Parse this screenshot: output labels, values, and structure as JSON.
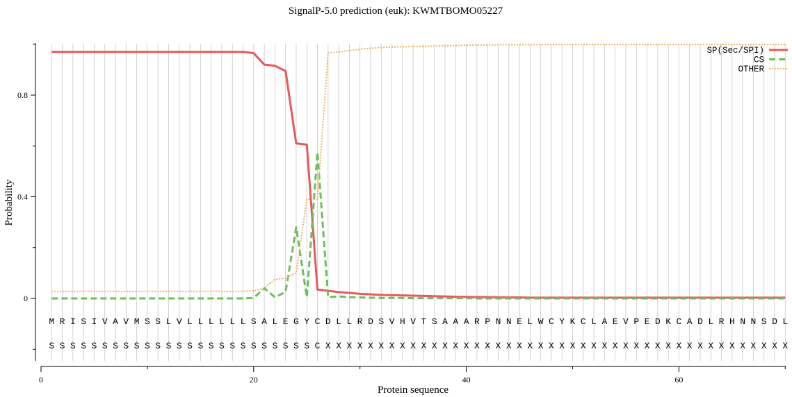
{
  "chart_data": {
    "type": "line",
    "title": "SignalP-5.0 prediction (euk):  KWMTBOMO05227",
    "xlabel": "Protein sequence",
    "ylabel": "Probability",
    "xlim": [
      0,
      70
    ],
    "ylim": [
      -0.25,
      1.0
    ],
    "x_ticks": [
      0,
      20,
      40,
      60
    ],
    "y_ticks": [
      0,
      0.4,
      0.8
    ],
    "y_tick_labels": [
      "0",
      "0.4",
      "0.8"
    ],
    "grid": "vertical lines at each residue",
    "legend_position": "top-right",
    "sequence": [
      "M",
      "R",
      "I",
      "S",
      "I",
      "V",
      "A",
      "V",
      "M",
      "S",
      "S",
      "L",
      "V",
      "L",
      "L",
      "L",
      "L",
      "L",
      "L",
      "S",
      "A",
      "L",
      "E",
      "G",
      "Y",
      "C",
      "D",
      "L",
      "L",
      "R",
      "D",
      "S",
      "V",
      "H",
      "V",
      "T",
      "S",
      "A",
      "A",
      "A",
      "R",
      "P",
      "N",
      "N",
      "E",
      "L",
      "W",
      "C",
      "Y",
      "K",
      "C",
      "L",
      "A",
      "E",
      "V",
      "P",
      "E",
      "D",
      "K",
      "C",
      "A",
      "D",
      "L",
      "R",
      "H",
      "N",
      "N",
      "S",
      "D",
      "L"
    ],
    "states": [
      "S",
      "S",
      "S",
      "S",
      "S",
      "S",
      "S",
      "S",
      "S",
      "S",
      "S",
      "S",
      "S",
      "S",
      "S",
      "S",
      "S",
      "S",
      "S",
      "S",
      "S",
      "S",
      "S",
      "S",
      "S",
      "C",
      "X",
      "X",
      "X",
      "X",
      "X",
      "X",
      "X",
      "X",
      "X",
      "X",
      "X",
      "X",
      "X",
      "X",
      "X",
      "X",
      "X",
      "X",
      "X",
      "X",
      "X",
      "X",
      "X",
      "X",
      "X",
      "X",
      "X",
      "X",
      "X",
      "X",
      "X",
      "X",
      "X",
      "X",
      "X",
      "X",
      "X",
      "X",
      "X",
      "X",
      "X",
      "X",
      "X",
      "X"
    ],
    "series": [
      {
        "name": "SP(Sec/SPI)",
        "color": "#e8585c",
        "style": "solid",
        "x": [
          1,
          2,
          3,
          4,
          5,
          6,
          7,
          8,
          9,
          10,
          11,
          12,
          13,
          14,
          15,
          16,
          17,
          18,
          19,
          20,
          21,
          22,
          23,
          24,
          25,
          26,
          27,
          28,
          29,
          30,
          31,
          32,
          33,
          34,
          35,
          36,
          37,
          38,
          39,
          40,
          41,
          42,
          43,
          44,
          45,
          46,
          47,
          48,
          49,
          50,
          51,
          52,
          53,
          54,
          55,
          56,
          57,
          58,
          59,
          60,
          61,
          62,
          63,
          64,
          65,
          66,
          67,
          68,
          69,
          70
        ],
        "values": [
          0.97,
          0.97,
          0.97,
          0.97,
          0.97,
          0.97,
          0.97,
          0.97,
          0.97,
          0.97,
          0.97,
          0.97,
          0.97,
          0.97,
          0.97,
          0.97,
          0.97,
          0.97,
          0.97,
          0.965,
          0.92,
          0.915,
          0.895,
          0.61,
          0.605,
          0.035,
          0.03,
          0.025,
          0.022,
          0.018,
          0.016,
          0.014,
          0.013,
          0.012,
          0.011,
          0.01,
          0.009,
          0.008,
          0.007,
          0.006,
          0.005,
          0.005,
          0.004,
          0.004,
          0.004,
          0.003,
          0.003,
          0.003,
          0.003,
          0.003,
          0.003,
          0.003,
          0.003,
          0.003,
          0.003,
          0.003,
          0.003,
          0.003,
          0.003,
          0.003,
          0.003,
          0.003,
          0.003,
          0.003,
          0.003,
          0.003,
          0.003,
          0.003,
          0.003,
          0.003
        ]
      },
      {
        "name": "CS",
        "color": "#6dbf5b",
        "style": "dashed",
        "x": [
          1,
          2,
          3,
          4,
          5,
          6,
          7,
          8,
          9,
          10,
          11,
          12,
          13,
          14,
          15,
          16,
          17,
          18,
          19,
          20,
          21,
          22,
          23,
          24,
          25,
          26,
          27,
          28,
          29,
          30,
          31,
          32,
          33,
          34,
          35,
          36,
          37,
          38,
          39,
          40,
          41,
          42,
          43,
          44,
          45,
          46,
          47,
          48,
          49,
          50,
          51,
          52,
          53,
          54,
          55,
          56,
          57,
          58,
          59,
          60,
          61,
          62,
          63,
          64,
          65,
          66,
          67,
          68,
          69,
          70
        ],
        "values": [
          0,
          0,
          0,
          0,
          0,
          0,
          0,
          0,
          0,
          0,
          0,
          0,
          0,
          0,
          0,
          0,
          0,
          0,
          0,
          0.002,
          0.04,
          0.005,
          0.025,
          0.28,
          0.005,
          0.575,
          0.005,
          0.008,
          0.005,
          0.004,
          0.003,
          0.002,
          0.002,
          0.002,
          0.001,
          0.001,
          0.001,
          0.001,
          0.001,
          0.001,
          0,
          0,
          0,
          0,
          0,
          0,
          0,
          0,
          0,
          0,
          0,
          0,
          0,
          0,
          0,
          0,
          0,
          0,
          0,
          0,
          0,
          0,
          0,
          0,
          0,
          0,
          0,
          0,
          0,
          0
        ]
      },
      {
        "name": "OTHER",
        "color": "#f5b060",
        "style": "dotted",
        "x": [
          1,
          2,
          3,
          4,
          5,
          6,
          7,
          8,
          9,
          10,
          11,
          12,
          13,
          14,
          15,
          16,
          17,
          18,
          19,
          20,
          21,
          22,
          23,
          24,
          25,
          26,
          27,
          28,
          29,
          30,
          31,
          32,
          33,
          34,
          35,
          36,
          37,
          38,
          39,
          40,
          41,
          42,
          43,
          44,
          45,
          46,
          47,
          48,
          49,
          50,
          51,
          52,
          53,
          54,
          55,
          56,
          57,
          58,
          59,
          60,
          61,
          62,
          63,
          64,
          65,
          66,
          67,
          68,
          69,
          70
        ],
        "values": [
          0.028,
          0.028,
          0.028,
          0.028,
          0.028,
          0.028,
          0.028,
          0.028,
          0.028,
          0.028,
          0.028,
          0.028,
          0.028,
          0.028,
          0.028,
          0.028,
          0.028,
          0.028,
          0.028,
          0.03,
          0.04,
          0.075,
          0.08,
          0.1,
          0.39,
          0.39,
          0.965,
          0.97,
          0.975,
          0.98,
          0.984,
          0.987,
          0.989,
          0.99,
          0.991,
          0.992,
          0.993,
          0.994,
          0.995,
          0.996,
          0.997,
          0.997,
          0.998,
          0.998,
          0.998,
          0.998,
          0.999,
          0.999,
          0.999,
          0.999,
          0.999,
          0.999,
          0.999,
          0.999,
          0.999,
          0.999,
          0.999,
          0.999,
          0.999,
          0.999,
          0.999,
          0.999,
          0.999,
          0.999,
          0.999,
          0.999,
          0.999,
          0.999,
          0.999,
          0.999
        ]
      }
    ]
  }
}
